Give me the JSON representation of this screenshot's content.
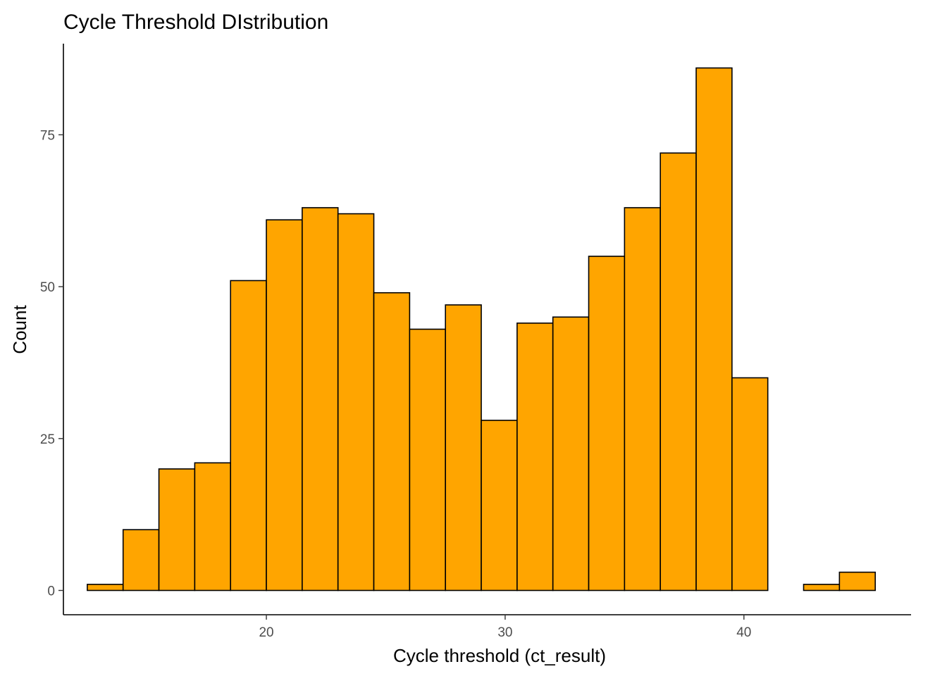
{
  "chart_data": {
    "type": "bar",
    "title": "Cycle Threshold DIstribution",
    "xlabel": "Cycle threshold (ct_result)",
    "ylabel": "Count",
    "x_ticks": [
      20,
      30,
      40
    ],
    "y_ticks": [
      0,
      25,
      50,
      75
    ],
    "xlim": [
      11.5,
      47.0
    ],
    "ylim": [
      -4.0,
      90.0
    ],
    "bin_width": 1.5,
    "bins": [
      {
        "x_start": 12.5,
        "x_end": 14.0,
        "count": 1
      },
      {
        "x_start": 14.0,
        "x_end": 15.5,
        "count": 10
      },
      {
        "x_start": 15.5,
        "x_end": 17.0,
        "count": 20
      },
      {
        "x_start": 17.0,
        "x_end": 18.5,
        "count": 21
      },
      {
        "x_start": 18.5,
        "x_end": 20.0,
        "count": 51
      },
      {
        "x_start": 20.0,
        "x_end": 21.5,
        "count": 61
      },
      {
        "x_start": 21.5,
        "x_end": 23.0,
        "count": 63
      },
      {
        "x_start": 23.0,
        "x_end": 24.5,
        "count": 62
      },
      {
        "x_start": 24.5,
        "x_end": 26.0,
        "count": 49
      },
      {
        "x_start": 26.0,
        "x_end": 27.5,
        "count": 43
      },
      {
        "x_start": 27.5,
        "x_end": 29.0,
        "count": 47
      },
      {
        "x_start": 29.0,
        "x_end": 30.5,
        "count": 28
      },
      {
        "x_start": 30.5,
        "x_end": 32.0,
        "count": 44
      },
      {
        "x_start": 32.0,
        "x_end": 33.5,
        "count": 45
      },
      {
        "x_start": 33.5,
        "x_end": 35.0,
        "count": 55
      },
      {
        "x_start": 35.0,
        "x_end": 36.5,
        "count": 63
      },
      {
        "x_start": 36.5,
        "x_end": 38.0,
        "count": 72
      },
      {
        "x_start": 38.0,
        "x_end": 39.5,
        "count": 86
      },
      {
        "x_start": 39.5,
        "x_end": 41.0,
        "count": 35
      },
      {
        "x_start": 41.0,
        "x_end": 42.5,
        "count": 0
      },
      {
        "x_start": 42.5,
        "x_end": 44.0,
        "count": 1
      },
      {
        "x_start": 44.0,
        "x_end": 45.5,
        "count": 3
      }
    ],
    "colors": {
      "fill": "#FFA500",
      "outline": "#000000"
    },
    "grid": false,
    "legend": "none"
  }
}
